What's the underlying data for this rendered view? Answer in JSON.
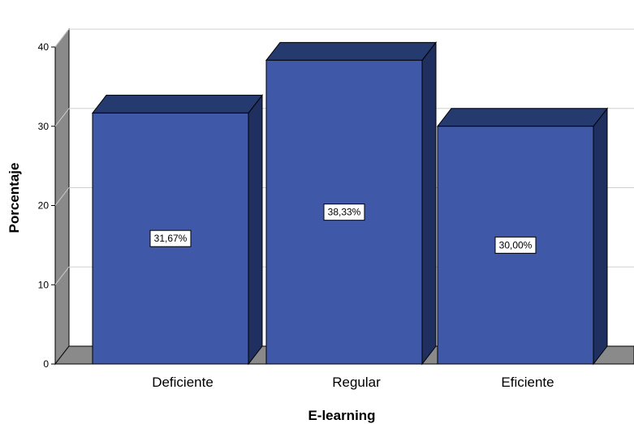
{
  "chart_data": {
    "type": "bar",
    "categories": [
      "Deficiente",
      "Regular",
      "Eficiente"
    ],
    "values": [
      31.67,
      38.33,
      30.0
    ],
    "data_labels": [
      "31,67%",
      "38,33%",
      "30,00%"
    ],
    "xlabel": "E-learning",
    "ylabel": "Porcentaje",
    "ylim": [
      0,
      40
    ],
    "yticks": [
      "0",
      "10",
      "20",
      "30",
      "40"
    ],
    "grid": true,
    "style": "3d",
    "colors": {
      "bar_front": "#3f58a8",
      "bar_top": "#253a6e",
      "bar_side": "#1f3060",
      "wall_side": "#8a8a8a",
      "floor": "#8a8a8a",
      "grid": "#d0d0d0"
    }
  }
}
